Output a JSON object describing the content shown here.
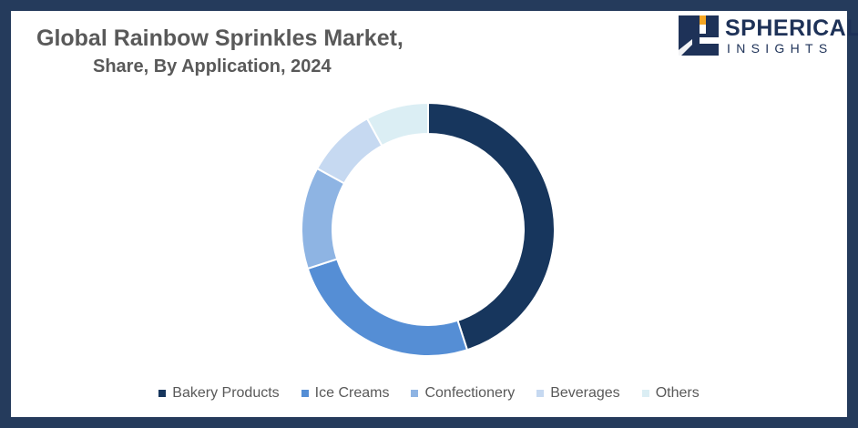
{
  "header": {
    "title_line1": "Global Rainbow Sprinkles Market,",
    "title_line2": "Share, By Application,  2024"
  },
  "logo": {
    "word1": "SPHERICAL",
    "word2": "INSIGHTS",
    "color": "#1e3258",
    "accent": "#f5a623"
  },
  "chart_data": {
    "type": "pie",
    "variant": "donut",
    "title": "Global Rainbow Sprinkles Market, Share, By Application, 2024",
    "legend_position": "bottom",
    "start_angle_deg": 0,
    "direction": "clockwise",
    "series": [
      {
        "name": "Bakery Products",
        "value": 45,
        "color": "#17365d"
      },
      {
        "name": "Ice Creams",
        "value": 25,
        "color": "#558ed5"
      },
      {
        "name": "Confectionery",
        "value": 13,
        "color": "#8eb4e3"
      },
      {
        "name": "Beverages",
        "value": 9,
        "color": "#c6d9f1"
      },
      {
        "name": "Others",
        "value": 8,
        "color": "#dbeef4"
      }
    ]
  }
}
